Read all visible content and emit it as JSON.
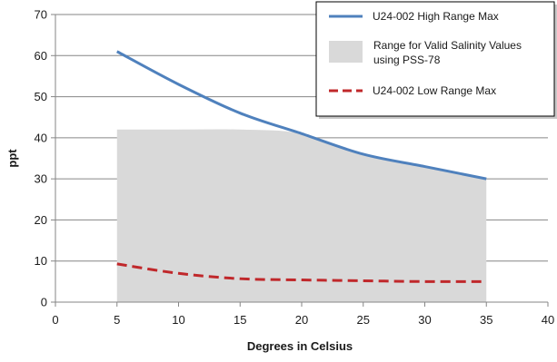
{
  "chart_data": {
    "type": "line",
    "title": "",
    "xlabel": "Degrees in Celsius",
    "ylabel": "ppt",
    "xlim": [
      0,
      40
    ],
    "ylim": [
      0,
      70
    ],
    "xticks": [
      0,
      5,
      10,
      15,
      20,
      25,
      30,
      35,
      40
    ],
    "yticks": [
      0,
      10,
      20,
      30,
      40,
      50,
      60,
      70
    ],
    "grid": "horizontal",
    "legend_position": "top-right",
    "series": [
      {
        "name": "U24-002 High Range Max",
        "kind": "line",
        "style": "solid",
        "color": "#4f81bd",
        "x": [
          5,
          10,
          15,
          20,
          25,
          30,
          35
        ],
        "y": [
          61,
          53,
          46,
          41,
          36,
          33,
          30
        ]
      },
      {
        "name": "Range for Valid Salinity Values using PSS-78",
        "legend_lines": [
          "Range for Valid Salinity Values",
          "using PSS-78"
        ],
        "kind": "area",
        "color": "#d9d9d9",
        "x": [
          5,
          10,
          15,
          20,
          25,
          30,
          35
        ],
        "y": [
          42,
          42,
          42,
          41,
          36,
          33,
          30
        ]
      },
      {
        "name": "U24-002 Low Range Max",
        "kind": "line",
        "style": "dashed",
        "color": "#c0282b",
        "x": [
          5,
          10,
          15,
          20,
          25,
          30,
          35
        ],
        "y": [
          9.3,
          7,
          5.7,
          5.4,
          5.2,
          5,
          5
        ]
      }
    ]
  }
}
